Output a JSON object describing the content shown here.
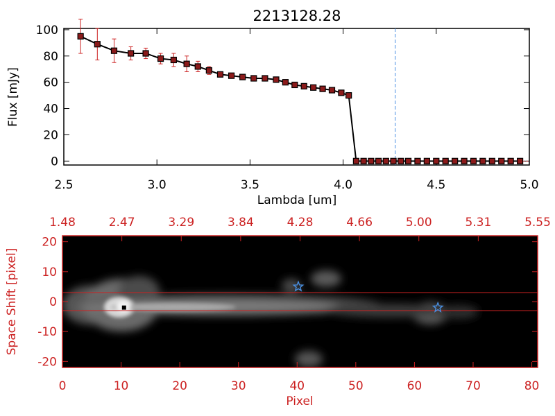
{
  "chart_data": [
    {
      "type": "line",
      "title": "2213128.28",
      "xlabel": "Lambda [um]",
      "ylabel": "Flux [mJy]",
      "xlim": [
        2.5,
        5.0
      ],
      "ylim": [
        -3,
        101
      ],
      "x_ticks": [
        "2.5",
        "3.0",
        "3.5",
        "4.0",
        "4.5",
        "5.0"
      ],
      "y_ticks": [
        "0",
        "20",
        "40",
        "60",
        "80",
        "100"
      ],
      "x_tick_values": [
        2.5,
        3.0,
        3.5,
        4.0,
        4.5,
        5.0
      ],
      "y_tick_values": [
        0,
        20,
        40,
        60,
        80,
        100
      ],
      "vline_x": 4.28,
      "line_color": "#000000",
      "marker_color": "#8b1a1a",
      "errorbar_color": "#cc2222",
      "vline_color": "#4a90e2",
      "series": [
        {
          "x": [
            2.59,
            2.68,
            2.77,
            2.86,
            2.94,
            3.02,
            3.09,
            3.16,
            3.22,
            3.28,
            3.34,
            3.4,
            3.46,
            3.52,
            3.58,
            3.64,
            3.69,
            3.74,
            3.79,
            3.84,
            3.89,
            3.94,
            3.99,
            4.03,
            4.07,
            4.11,
            4.15,
            4.19,
            4.23,
            4.27,
            4.31,
            4.35,
            4.4,
            4.45,
            4.5,
            4.55,
            4.6,
            4.65,
            4.7,
            4.75,
            4.8,
            4.85,
            4.9,
            4.95
          ],
          "y": [
            95,
            89,
            84,
            82,
            82,
            78,
            77,
            74,
            72,
            69,
            66,
            65,
            64,
            63,
            63,
            62,
            60,
            58,
            57,
            56,
            55,
            54,
            52,
            50,
            0,
            0,
            0,
            0,
            0,
            0,
            0,
            0,
            0,
            0,
            0,
            0,
            0,
            0,
            0,
            0,
            0,
            0,
            0,
            0
          ],
          "err": [
            13,
            12,
            9,
            5,
            4,
            4,
            5,
            6,
            4,
            3,
            2,
            1,
            1,
            1,
            1,
            1,
            1,
            1,
            1,
            1,
            1,
            1,
            1,
            1,
            0,
            0,
            0,
            0,
            0,
            0,
            0,
            0,
            0,
            0,
            0,
            0,
            0,
            0,
            0,
            0,
            0,
            0,
            0,
            0
          ]
        }
      ]
    },
    {
      "type": "heatmap",
      "xlabel": "Pixel",
      "ylabel": "Space Shift [pixel]",
      "xlim": [
        0,
        81
      ],
      "ylim": [
        -22,
        22
      ],
      "x_ticks": [
        "0",
        "10",
        "20",
        "30",
        "40",
        "50",
        "60",
        "70",
        "80"
      ],
      "x_tick_values": [
        0,
        10,
        20,
        30,
        40,
        50,
        60,
        70,
        80
      ],
      "y_ticks": [
        "20",
        "10",
        "0",
        "-10",
        "-20"
      ],
      "y_tick_values": [
        20,
        10,
        0,
        -10,
        -20
      ],
      "top_ticks": [
        "1.48",
        "2.47",
        "3.29",
        "3.84",
        "4.28",
        "4.66",
        "5.00",
        "5.31",
        "5.55"
      ],
      "hlines_y": [
        3,
        -3
      ],
      "star_points": [
        [
          40.2,
          5
        ],
        [
          64,
          -2
        ]
      ],
      "square_point": [
        10.5,
        -2
      ],
      "axis_color": "#cc2222",
      "star_color": "#4a90e2"
    }
  ]
}
